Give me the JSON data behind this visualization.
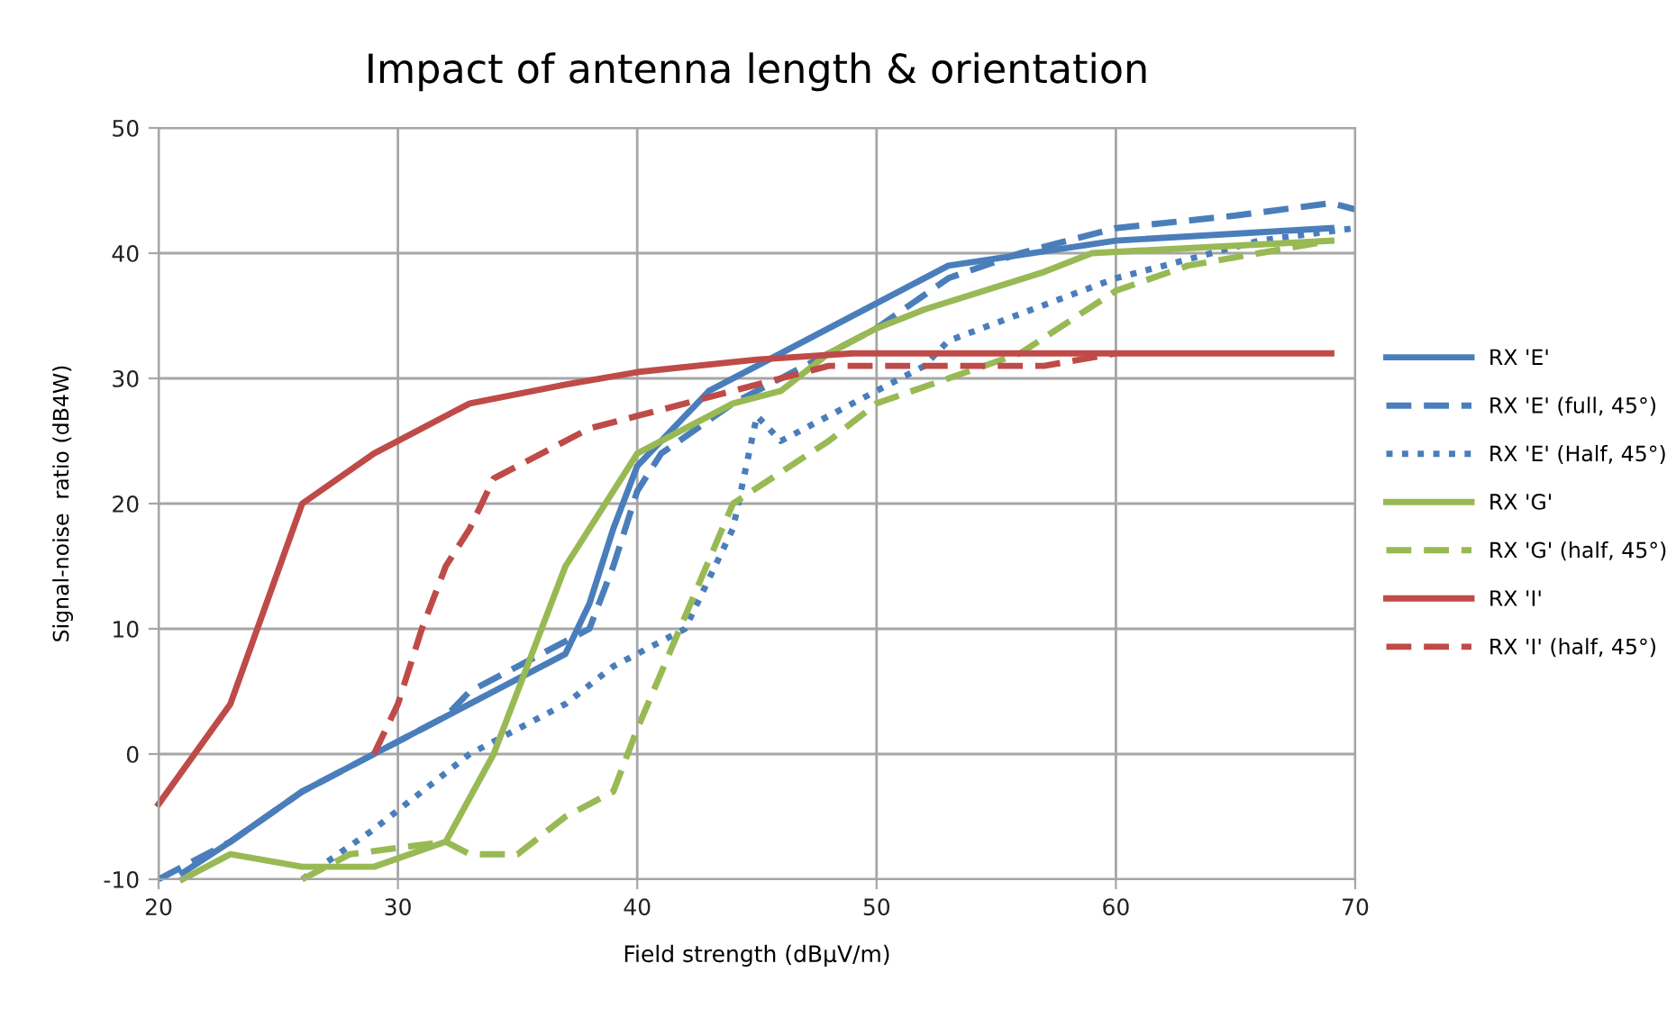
{
  "chart_data": {
    "type": "line",
    "title": "Impact of antenna length & orientation",
    "xlabel": "Field strength (dBµV/m)",
    "ylabel": "Signal-noise  ratio (dB4W)",
    "xlim": [
      20,
      70
    ],
    "xticks": [
      20,
      30,
      40,
      50,
      60,
      70
    ],
    "ylim": [
      -10,
      50
    ],
    "yticks": [
      -10,
      0,
      10,
      20,
      30,
      40,
      50
    ],
    "grid": true,
    "legend": "right",
    "marker": "none",
    "series": [
      {
        "name": "RX 'E'",
        "color": "#4a7ebb",
        "line_style": "solid",
        "x": [
          21,
          23,
          26,
          29,
          33,
          37,
          38,
          39,
          40,
          43,
          45,
          50,
          53,
          60,
          69
        ],
        "values": [
          -9.5,
          -7,
          -3,
          0,
          4,
          8,
          12,
          18,
          23,
          29,
          31,
          36,
          39,
          41,
          42
        ]
      },
      {
        "name": "RX 'E' (full, 45°)",
        "color": "#4a7ebb",
        "line_style": "dashed",
        "x": [
          20,
          23,
          26,
          29,
          32,
          33,
          37,
          38,
          39,
          40,
          41,
          44,
          46,
          50,
          53,
          56,
          60,
          65,
          69,
          70
        ],
        "values": [
          -10,
          -7,
          -3,
          0,
          3,
          5,
          9,
          10,
          15,
          21,
          24,
          28,
          30,
          34,
          38,
          40,
          42,
          43,
          44,
          43.5
        ]
      },
      {
        "name": "RX 'E' (Half, 45°)",
        "color": "#4a7ebb",
        "line_style": "dotted",
        "x": [
          26,
          29,
          31,
          33,
          35,
          37,
          39,
          41,
          42,
          44,
          45,
          46,
          48,
          50,
          52,
          53,
          60,
          66,
          70
        ],
        "values": [
          -10,
          -6,
          -3,
          0,
          2,
          4,
          7,
          9,
          10,
          18,
          27,
          25,
          27,
          29,
          31,
          33,
          38,
          41,
          42
        ]
      },
      {
        "name": "RX 'G'",
        "color": "#98b954",
        "line_style": "solid",
        "x": [
          21,
          23,
          26,
          29,
          32,
          34,
          35,
          36,
          37,
          38,
          40,
          42,
          44,
          46,
          48,
          50,
          52,
          57,
          59,
          69
        ],
        "values": [
          -10,
          -8,
          -9,
          -9,
          -7,
          0,
          5,
          10,
          15,
          18,
          24,
          26,
          28,
          29,
          32,
          34,
          35.5,
          38.5,
          40,
          41
        ]
      },
      {
        "name": "RX 'G' (half, 45°)",
        "color": "#98b954",
        "line_style": "dashed",
        "x": [
          26,
          28,
          32,
          33,
          35,
          37,
          39,
          40,
          42,
          44,
          48,
          50,
          53,
          56,
          60,
          63,
          69
        ],
        "values": [
          -10,
          -8,
          -7,
          -8,
          -8,
          -5,
          -3,
          2,
          11,
          20,
          25,
          28,
          30,
          32,
          37,
          39,
          41
        ]
      },
      {
        "name": "RX 'I'",
        "color": "#be4b48",
        "line_style": "solid",
        "x": [
          20,
          23,
          26,
          29,
          33,
          37,
          40,
          45,
          49,
          69
        ],
        "values": [
          -4,
          4,
          20,
          24,
          28,
          29.5,
          30.5,
          31.5,
          32,
          32
        ]
      },
      {
        "name": "RX 'I' (half, 45°)",
        "color": "#be4b48",
        "line_style": "dashed",
        "x": [
          29,
          30,
          31,
          32,
          33,
          34,
          38,
          40,
          42,
          46,
          48,
          57,
          60
        ],
        "values": [
          0,
          4,
          10,
          15,
          18,
          22,
          26,
          27,
          28,
          30,
          31,
          31,
          32
        ]
      }
    ]
  }
}
